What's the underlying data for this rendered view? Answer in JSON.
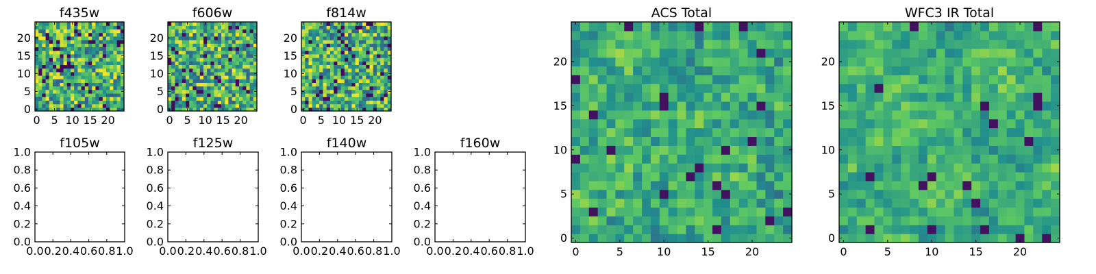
{
  "figure": {
    "background": "#ffffff",
    "colormap": [
      "#440154",
      "#3b528b",
      "#21908d",
      "#5dc963",
      "#fde725"
    ]
  },
  "chart_data": [
    {
      "id": "f435w",
      "type": "heatmap",
      "title": "f435w",
      "grid": 25,
      "xlim": [
        -0.5,
        24.5
      ],
      "ylim": [
        -0.5,
        24.5
      ],
      "xticks": [
        0,
        5,
        10,
        15,
        20
      ],
      "yticks": [
        0,
        5,
        10,
        15,
        20
      ],
      "xtick_labels": [
        "0",
        "5",
        "10",
        "15",
        "20"
      ],
      "ytick_labels": [
        "0",
        "5",
        "10",
        "15",
        "20"
      ],
      "has_image": true,
      "noise_seed": 11,
      "noise_scale": 0,
      "noise_mix": 0.0
    },
    {
      "id": "f606w",
      "type": "heatmap",
      "title": "f606w",
      "grid": 25,
      "xlim": [
        -0.5,
        24.5
      ],
      "ylim": [
        -0.5,
        24.5
      ],
      "xticks": [
        0,
        5,
        10,
        15,
        20
      ],
      "yticks": [
        0,
        5,
        10,
        15,
        20
      ],
      "xtick_labels": [
        "0",
        "5",
        "10",
        "15",
        "20"
      ],
      "ytick_labels": [
        "0",
        "5",
        "10",
        "15",
        "20"
      ],
      "has_image": true,
      "noise_seed": 23,
      "noise_scale": 0,
      "noise_mix": 0.0
    },
    {
      "id": "f814w",
      "type": "heatmap",
      "title": "f814w",
      "grid": 25,
      "xlim": [
        -0.5,
        24.5
      ],
      "ylim": [
        -0.5,
        24.5
      ],
      "xticks": [
        0,
        5,
        10,
        15,
        20
      ],
      "yticks": [
        0,
        5,
        10,
        15,
        20
      ],
      "xtick_labels": [
        "0",
        "5",
        "10",
        "15",
        "20"
      ],
      "ytick_labels": [
        "0",
        "5",
        "10",
        "15",
        "20"
      ],
      "has_image": true,
      "noise_seed": 37,
      "noise_scale": 0,
      "noise_mix": 0.0
    },
    {
      "id": "f105w",
      "type": "heatmap",
      "title": "f105w",
      "xlim": [
        0.0,
        1.0
      ],
      "ylim": [
        0.0,
        1.0
      ],
      "xticks": [
        0.0,
        0.2,
        0.4,
        0.6,
        0.8,
        1.0
      ],
      "yticks": [
        0.0,
        0.2,
        0.4,
        0.6,
        0.8,
        1.0
      ],
      "xtick_labels": [
        "0.0",
        "0.2",
        "0.4",
        "0.6",
        "0.8",
        "1.0"
      ],
      "ytick_labels": [
        "0.0",
        "0.2",
        "0.4",
        "0.6",
        "0.8",
        "1.0"
      ],
      "has_image": false
    },
    {
      "id": "f125w",
      "type": "heatmap",
      "title": "f125w",
      "xlim": [
        0.0,
        1.0
      ],
      "ylim": [
        0.0,
        1.0
      ],
      "xticks": [
        0.0,
        0.2,
        0.4,
        0.6,
        0.8,
        1.0
      ],
      "yticks": [
        0.0,
        0.2,
        0.4,
        0.6,
        0.8,
        1.0
      ],
      "xtick_labels": [
        "0.0",
        "0.2",
        "0.4",
        "0.6",
        "0.8",
        "1.0"
      ],
      "ytick_labels": [
        "0.0",
        "0.2",
        "0.4",
        "0.6",
        "0.8",
        "1.0"
      ],
      "has_image": false
    },
    {
      "id": "f140w",
      "type": "heatmap",
      "title": "f140w",
      "xlim": [
        0.0,
        1.0
      ],
      "ylim": [
        0.0,
        1.0
      ],
      "xticks": [
        0.0,
        0.2,
        0.4,
        0.6,
        0.8,
        1.0
      ],
      "yticks": [
        0.0,
        0.2,
        0.4,
        0.6,
        0.8,
        1.0
      ],
      "xtick_labels": [
        "0.0",
        "0.2",
        "0.4",
        "0.6",
        "0.8",
        "1.0"
      ],
      "ytick_labels": [
        "0.0",
        "0.2",
        "0.4",
        "0.6",
        "0.8",
        "1.0"
      ],
      "has_image": false
    },
    {
      "id": "f160w",
      "type": "heatmap",
      "title": "f160w",
      "xlim": [
        0.0,
        1.0
      ],
      "ylim": [
        0.0,
        1.0
      ],
      "xticks": [
        0.0,
        0.2,
        0.4,
        0.6,
        0.8,
        1.0
      ],
      "yticks": [
        0.0,
        0.2,
        0.4,
        0.6,
        0.8,
        1.0
      ],
      "xtick_labels": [
        "0.0",
        "0.2",
        "0.4",
        "0.6",
        "0.8",
        "1.0"
      ],
      "ytick_labels": [
        "0.0",
        "0.2",
        "0.4",
        "0.6",
        "0.8",
        "1.0"
      ],
      "has_image": false
    },
    {
      "id": "acs-total",
      "type": "heatmap",
      "title": "ACS Total",
      "grid": 25,
      "xlim": [
        -0.5,
        24.5
      ],
      "ylim": [
        -0.5,
        24.5
      ],
      "xticks": [
        0,
        5,
        10,
        15,
        20
      ],
      "yticks": [
        0,
        5,
        10,
        15,
        20
      ],
      "xtick_labels": [
        "0",
        "5",
        "10",
        "15",
        "20"
      ],
      "ytick_labels": [
        "0",
        "5",
        "10",
        "15",
        "20"
      ],
      "has_image": true,
      "noise_seed": 53,
      "noise_scale": 7,
      "noise_mix": 0.35
    },
    {
      "id": "wfc3-ir-total",
      "type": "heatmap",
      "title": "WFC3 IR Total",
      "grid": 25,
      "xlim": [
        -0.5,
        24.5
      ],
      "ylim": [
        -0.5,
        24.5
      ],
      "xticks": [
        0,
        5,
        10,
        15,
        20
      ],
      "yticks": [
        0,
        5,
        10,
        15,
        20
      ],
      "xtick_labels": [
        "0",
        "5",
        "10",
        "15",
        "20"
      ],
      "ytick_labels": [
        "0",
        "5",
        "10",
        "15",
        "20"
      ],
      "has_image": true,
      "noise_seed": 71,
      "noise_scale": 6,
      "noise_mix": 0.55
    }
  ]
}
